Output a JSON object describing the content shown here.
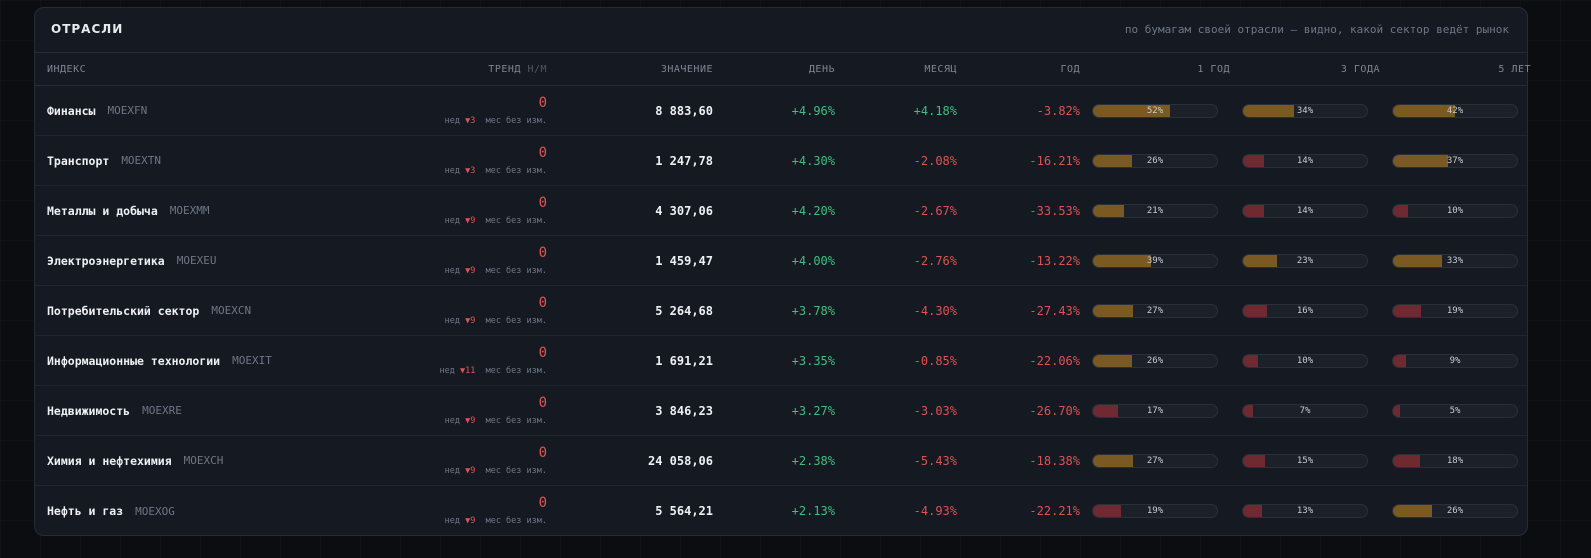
{
  "panel": {
    "title": "ОТРАСЛИ",
    "note": "по бумагам своей отрасли — видно, какой сектор ведёт рынок"
  },
  "headers": {
    "index": "ИНДЕКС",
    "trend": "ТРЕНД",
    "trend_sub": "Н/М",
    "value": "ЗНАЧЕНИЕ",
    "day": "ДЕНЬ",
    "month": "МЕСЯЦ",
    "year": "ГОД",
    "y1": "1 ГОД",
    "y3": "3 ГОДА",
    "y5": "5 ЛЕТ"
  },
  "colors": {
    "positive": "#3fbf7f",
    "negative": "#e05252",
    "bar_high": "#7a5a22",
    "bar_low": "#6e2a30"
  },
  "rows": [
    {
      "name": "Финансы",
      "ticker": "MOEXFN",
      "trend": "0",
      "wk_label": "нед",
      "wk": "▼3",
      "mo": "мес без изм.",
      "value": "8 883,60",
      "day": "+4.96%",
      "month": "+4.18%",
      "year": "-3.82%",
      "b1": "52%",
      "b3": "34%",
      "b5": "42%"
    },
    {
      "name": "Транспорт",
      "ticker": "MOEXTN",
      "trend": "0",
      "wk_label": "нед",
      "wk": "▼3",
      "mo": "мес без изм.",
      "value": "1 247,78",
      "day": "+4.30%",
      "month": "-2.08%",
      "year": "-16.21%",
      "b1": "26%",
      "b3": "14%",
      "b5": "37%"
    },
    {
      "name": "Металлы и добыча",
      "ticker": "MOEXMM",
      "trend": "0",
      "wk_label": "нед",
      "wk": "▼9",
      "mo": "мес без изм.",
      "value": "4 307,06",
      "day": "+4.20%",
      "month": "-2.67%",
      "year": "-33.53%",
      "b1": "21%",
      "b3": "14%",
      "b5": "10%"
    },
    {
      "name": "Электроэнергетика",
      "ticker": "MOEXEU",
      "trend": "0",
      "wk_label": "нед",
      "wk": "▼9",
      "mo": "мес без изм.",
      "value": "1 459,47",
      "day": "+4.00%",
      "month": "-2.76%",
      "year": "-13.22%",
      "b1": "39%",
      "b3": "23%",
      "b5": "33%"
    },
    {
      "name": "Потребительский сектор",
      "ticker": "MOEXCN",
      "trend": "0",
      "wk_label": "нед",
      "wk": "▼9",
      "mo": "мес без изм.",
      "value": "5 264,68",
      "day": "+3.78%",
      "month": "-4.30%",
      "year": "-27.43%",
      "b1": "27%",
      "b3": "16%",
      "b5": "19%"
    },
    {
      "name": "Информационные технологии",
      "ticker": "MOEXIT",
      "trend": "0",
      "wk_label": "нед",
      "wk": "▼11",
      "mo": "мес без изм.",
      "value": "1 691,21",
      "day": "+3.35%",
      "month": "-0.85%",
      "year": "-22.06%",
      "b1": "26%",
      "b3": "10%",
      "b5": "9%"
    },
    {
      "name": "Недвижимость",
      "ticker": "MOEXRE",
      "trend": "0",
      "wk_label": "нед",
      "wk": "▼9",
      "mo": "мес без изм.",
      "value": "3 846,23",
      "day": "+3.27%",
      "month": "-3.03%",
      "year": "-26.70%",
      "b1": "17%",
      "b3": "7%",
      "b5": "5%"
    },
    {
      "name": "Химия и нефтехимия",
      "ticker": "MOEXCH",
      "trend": "0",
      "wk_label": "нед",
      "wk": "▼9",
      "mo": "мес без изм.",
      "value": "24 058,06",
      "day": "+2.38%",
      "month": "-5.43%",
      "year": "-18.38%",
      "b1": "27%",
      "b3": "15%",
      "b5": "18%"
    },
    {
      "name": "Нефть и газ",
      "ticker": "MOEXOG",
      "trend": "0",
      "wk_label": "нед",
      "wk": "▼9",
      "mo": "мес без изм.",
      "value": "5 564,21",
      "day": "+2.13%",
      "month": "-4.93%",
      "year": "-22.21%",
      "b1": "19%",
      "b3": "13%",
      "b5": "26%"
    }
  ]
}
